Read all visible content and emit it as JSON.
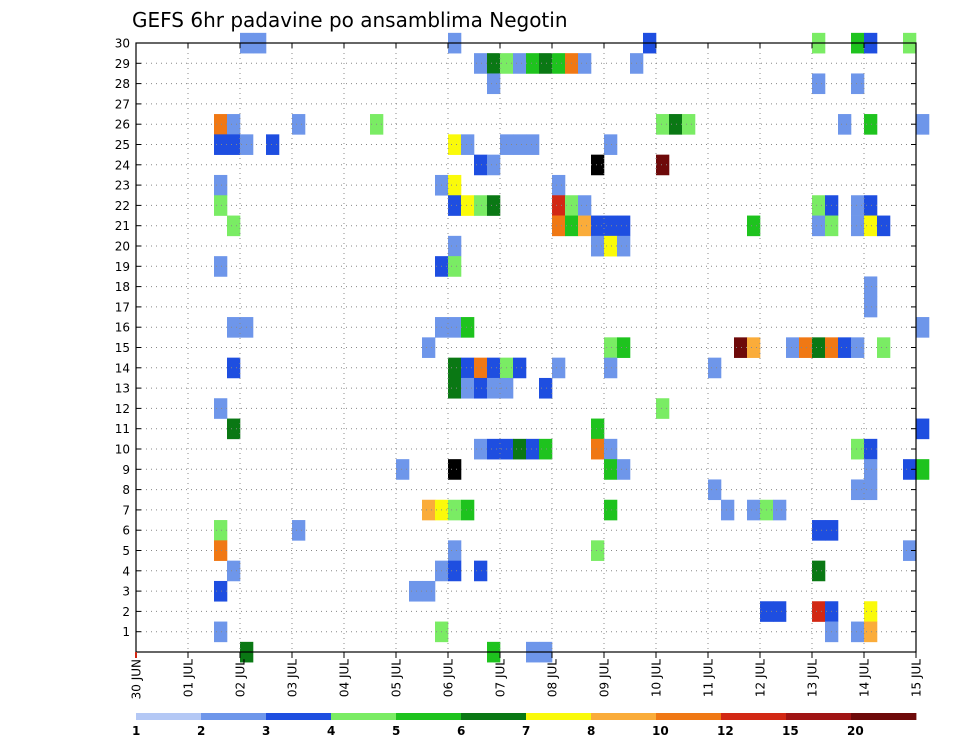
{
  "chart_data": {
    "type": "heatmap",
    "title": "GEFS 6hr padavine po ansamblima Negotin",
    "xlabel": "",
    "ylabel": "",
    "x_tick_labels": [
      "30 JUN",
      "01 JUL",
      "02 JUL",
      "03 JUL",
      "04 JUL",
      "05 JUL",
      "06 JUL",
      "07 JUL",
      "08 JUL",
      "09 JUL",
      "10 JUL",
      "11 JUL",
      "12 JUL",
      "13 JUL",
      "14 JUL",
      "15 JUL"
    ],
    "x_range_days": [
      0,
      15
    ],
    "time_step_hours": 6,
    "y_tick_labels": [
      "1",
      "2",
      "3",
      "4",
      "5",
      "6",
      "7",
      "8",
      "9",
      "10",
      "11",
      "12",
      "13",
      "14",
      "15",
      "16",
      "17",
      "18",
      "19",
      "20",
      "21",
      "22",
      "23",
      "24",
      "25",
      "26",
      "27",
      "28",
      "29",
      "30"
    ],
    "y_range": [
      0,
      30
    ],
    "grid": true,
    "legend_placement": "bottom",
    "legend": {
      "labels": [
        "1",
        "2",
        "3",
        "4",
        "5",
        "6",
        "7",
        "8",
        "10",
        "12",
        "15",
        "20"
      ],
      "colors": [
        "#b4c8f5",
        "#6e96ea",
        "#1e4ee0",
        "#7aec64",
        "#1ec31e",
        "#0a7814",
        "#fafa0a",
        "#faac3a",
        "#f07814",
        "#d22814",
        "#a01414",
        "#6e0a0a"
      ]
    },
    "cells": [
      [
        30,
        2.0,
        1
      ],
      [
        30,
        2.25,
        1
      ],
      [
        30,
        6.0,
        1
      ],
      [
        30,
        9.75,
        2
      ],
      [
        30,
        13.0,
        3
      ],
      [
        30,
        13.75,
        4
      ],
      [
        30,
        14.0,
        2
      ],
      [
        30,
        14.75,
        3
      ],
      [
        29,
        6.5,
        1
      ],
      [
        29,
        6.75,
        5
      ],
      [
        29,
        7.0,
        3
      ],
      [
        29,
        7.25,
        1
      ],
      [
        29,
        7.5,
        4
      ],
      [
        29,
        7.75,
        5
      ],
      [
        29,
        8.0,
        4
      ],
      [
        29,
        8.25,
        8
      ],
      [
        29,
        8.5,
        1
      ],
      [
        29,
        9.5,
        1
      ],
      [
        28,
        6.75,
        1
      ],
      [
        28,
        13.0,
        1
      ],
      [
        28,
        13.75,
        1
      ],
      [
        26,
        1.5,
        8
      ],
      [
        26,
        1.75,
        1
      ],
      [
        26,
        3.0,
        1
      ],
      [
        26,
        4.5,
        3
      ],
      [
        26,
        10.0,
        3
      ],
      [
        26,
        10.25,
        5
      ],
      [
        26,
        10.5,
        3
      ],
      [
        26,
        13.5,
        1
      ],
      [
        26,
        14.0,
        4
      ],
      [
        26,
        15.0,
        1
      ],
      [
        25,
        1.5,
        2
      ],
      [
        25,
        1.75,
        2
      ],
      [
        25,
        2.0,
        1
      ],
      [
        25,
        2.5,
        2
      ],
      [
        25,
        6.0,
        6
      ],
      [
        25,
        6.25,
        1
      ],
      [
        25,
        7.0,
        1
      ],
      [
        25,
        7.25,
        1
      ],
      [
        25,
        7.5,
        1
      ],
      [
        25,
        9.0,
        1
      ],
      [
        24,
        6.5,
        2
      ],
      [
        24,
        6.75,
        1
      ],
      [
        24,
        8.75,
        12
      ],
      [
        24,
        10.0,
        11
      ],
      [
        23,
        1.5,
        1
      ],
      [
        23,
        5.75,
        1
      ],
      [
        23,
        6.0,
        6
      ],
      [
        23,
        8.0,
        1
      ],
      [
        22,
        1.5,
        3
      ],
      [
        22,
        6.0,
        2
      ],
      [
        22,
        6.25,
        6
      ],
      [
        22,
        6.5,
        3
      ],
      [
        22,
        6.75,
        5
      ],
      [
        22,
        8.0,
        9
      ],
      [
        22,
        8.25,
        3
      ],
      [
        22,
        8.5,
        1
      ],
      [
        22,
        13.0,
        3
      ],
      [
        22,
        13.25,
        2
      ],
      [
        22,
        13.75,
        1
      ],
      [
        22,
        14.0,
        2
      ],
      [
        21,
        1.75,
        3
      ],
      [
        21,
        8.0,
        8
      ],
      [
        21,
        8.25,
        4
      ],
      [
        21,
        8.5,
        7
      ],
      [
        21,
        8.75,
        2
      ],
      [
        21,
        9.0,
        2
      ],
      [
        21,
        9.25,
        2
      ],
      [
        21,
        11.75,
        4
      ],
      [
        21,
        13.0,
        1
      ],
      [
        21,
        13.25,
        3
      ],
      [
        21,
        13.75,
        1
      ],
      [
        21,
        14.0,
        6
      ],
      [
        21,
        14.25,
        2
      ],
      [
        20,
        6.0,
        1
      ],
      [
        20,
        8.75,
        1
      ],
      [
        20,
        9.0,
        6
      ],
      [
        20,
        9.25,
        1
      ],
      [
        19,
        1.5,
        1
      ],
      [
        19,
        5.75,
        2
      ],
      [
        19,
        6.0,
        3
      ],
      [
        18,
        14.0,
        1
      ],
      [
        17,
        14.0,
        1
      ],
      [
        16,
        1.75,
        1
      ],
      [
        16,
        2.0,
        1
      ],
      [
        16,
        5.75,
        1
      ],
      [
        16,
        6.0,
        1
      ],
      [
        16,
        6.25,
        4
      ],
      [
        16,
        15.0,
        1
      ],
      [
        15,
        5.5,
        1
      ],
      [
        15,
        9.0,
        3
      ],
      [
        15,
        9.25,
        4
      ],
      [
        15,
        11.5,
        11
      ],
      [
        15,
        11.75,
        7
      ],
      [
        15,
        12.5,
        1
      ],
      [
        15,
        12.75,
        8
      ],
      [
        15,
        13.0,
        5
      ],
      [
        15,
        13.25,
        8
      ],
      [
        15,
        13.5,
        2
      ],
      [
        15,
        13.75,
        1
      ],
      [
        15,
        14.25,
        3
      ],
      [
        14,
        1.75,
        2
      ],
      [
        14,
        6.0,
        5
      ],
      [
        14,
        6.25,
        2
      ],
      [
        14,
        6.5,
        8
      ],
      [
        14,
        6.75,
        2
      ],
      [
        14,
        7.0,
        3
      ],
      [
        14,
        7.25,
        2
      ],
      [
        14,
        8.0,
        1
      ],
      [
        14,
        9.0,
        1
      ],
      [
        14,
        11.0,
        1
      ],
      [
        13,
        6.0,
        5
      ],
      [
        13,
        6.25,
        1
      ],
      [
        13,
        6.5,
        2
      ],
      [
        13,
        6.75,
        1
      ],
      [
        13,
        7.0,
        1
      ],
      [
        13,
        7.75,
        2
      ],
      [
        12,
        1.5,
        1
      ],
      [
        12,
        10.0,
        3
      ],
      [
        11,
        1.75,
        5
      ],
      [
        11,
        8.75,
        4
      ],
      [
        11,
        15.0,
        2
      ],
      [
        10,
        6.5,
        1
      ],
      [
        10,
        6.75,
        2
      ],
      [
        10,
        7.0,
        2
      ],
      [
        10,
        7.25,
        5
      ],
      [
        10,
        7.5,
        2
      ],
      [
        10,
        7.75,
        4
      ],
      [
        10,
        8.75,
        8
      ],
      [
        10,
        9.0,
        1
      ],
      [
        10,
        13.75,
        3
      ],
      [
        10,
        14.0,
        2
      ],
      [
        9,
        5.0,
        1
      ],
      [
        9,
        6.0,
        12
      ],
      [
        9,
        9.0,
        4
      ],
      [
        9,
        9.25,
        1
      ],
      [
        9,
        14.0,
        1
      ],
      [
        9,
        14.75,
        2
      ],
      [
        9,
        15.0,
        4
      ],
      [
        8,
        11.0,
        1
      ],
      [
        8,
        13.75,
        1
      ],
      [
        8,
        14.0,
        1
      ],
      [
        7,
        5.5,
        7
      ],
      [
        7,
        5.75,
        6
      ],
      [
        7,
        6.0,
        3
      ],
      [
        7,
        6.25,
        4
      ],
      [
        7,
        9.0,
        4
      ],
      [
        7,
        11.25,
        1
      ],
      [
        7,
        11.75,
        1
      ],
      [
        7,
        12.0,
        3
      ],
      [
        7,
        12.25,
        1
      ],
      [
        6,
        1.5,
        3
      ],
      [
        6,
        3.0,
        1
      ],
      [
        6,
        13.0,
        2
      ],
      [
        6,
        13.25,
        2
      ],
      [
        5,
        1.5,
        8
      ],
      [
        5,
        6.0,
        1
      ],
      [
        5,
        8.75,
        3
      ],
      [
        5,
        14.75,
        1
      ],
      [
        4,
        1.75,
        1
      ],
      [
        4,
        5.75,
        1
      ],
      [
        4,
        6.0,
        2
      ],
      [
        4,
        6.5,
        2
      ],
      [
        4,
        13.0,
        5
      ],
      [
        3,
        1.5,
        2
      ],
      [
        3,
        5.25,
        1
      ],
      [
        3,
        5.5,
        1
      ],
      [
        2,
        12.0,
        2
      ],
      [
        2,
        12.25,
        2
      ],
      [
        2,
        13.0,
        9
      ],
      [
        2,
        13.25,
        2
      ],
      [
        2,
        14.0,
        6
      ],
      [
        1,
        1.5,
        1
      ],
      [
        1,
        5.75,
        3
      ],
      [
        1,
        13.25,
        1
      ],
      [
        1,
        13.75,
        1
      ],
      [
        1,
        14.0,
        7
      ],
      [
        0,
        2.0,
        5
      ],
      [
        0,
        6.75,
        4
      ],
      [
        0,
        7.5,
        1
      ],
      [
        0,
        7.75,
        1
      ]
    ]
  }
}
